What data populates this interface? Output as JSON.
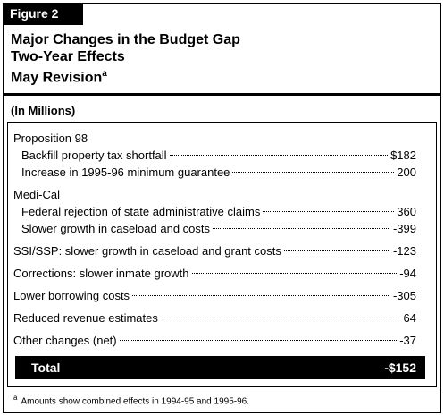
{
  "figure_label": "Figure 2",
  "title": [
    "Major Changes in the Budget Gap",
    "Two-Year Effects",
    "May Revision"
  ],
  "title_note": "a",
  "units": "(In Millions)",
  "sections": [
    {
      "heading": "Proposition 98",
      "items": [
        {
          "label": "Backfill property tax shortfall",
          "value": "$182"
        },
        {
          "label": "Increase in 1995-96 minimum guarantee",
          "value": "200"
        }
      ]
    },
    {
      "heading": "Medi-Cal",
      "items": [
        {
          "label": "Federal rejection of state administrative claims",
          "value": "360"
        },
        {
          "label": "Slower growth in caseload and costs",
          "value": "-399"
        }
      ]
    },
    {
      "label": "SSI/SSP: slower growth in caseload and grant costs",
      "value": "-123"
    },
    {
      "label": "Corrections: slower inmate growth",
      "value": "-94"
    },
    {
      "label": "Lower borrowing costs",
      "value": "-305"
    },
    {
      "label": "Reduced revenue estimates",
      "value": "64"
    },
    {
      "label": "Other changes (net)",
      "value": "-37"
    }
  ],
  "total": {
    "label": "Total",
    "value": "-$152"
  },
  "footnote": {
    "marker": "a",
    "text": "Amounts show combined effects in 1994-95 and 1995-96."
  }
}
